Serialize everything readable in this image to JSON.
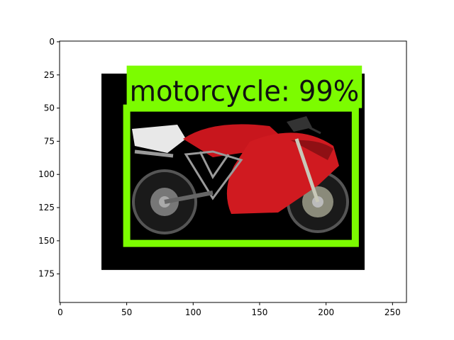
{
  "plot": {
    "x_range": [
      -0.5,
      260.5
    ],
    "y_range": [
      196.5,
      -0.5
    ],
    "x_ticks": [
      0,
      50,
      100,
      150,
      200,
      250
    ],
    "y_ticks": [
      0,
      25,
      50,
      75,
      100,
      125,
      150,
      175
    ]
  },
  "image": {
    "background": "#000000",
    "extent": {
      "x0": 31,
      "x1": 229,
      "y0": 24,
      "y1": 172
    }
  },
  "detection": {
    "label": "motorcycle: 99%",
    "box_color": "#7cfc00",
    "box": {
      "x0": 50,
      "x1": 222,
      "y0": 50,
      "y1": 152
    },
    "label_box": {
      "x0": 50,
      "x1": 227,
      "y0": 18,
      "y1": 50
    }
  }
}
